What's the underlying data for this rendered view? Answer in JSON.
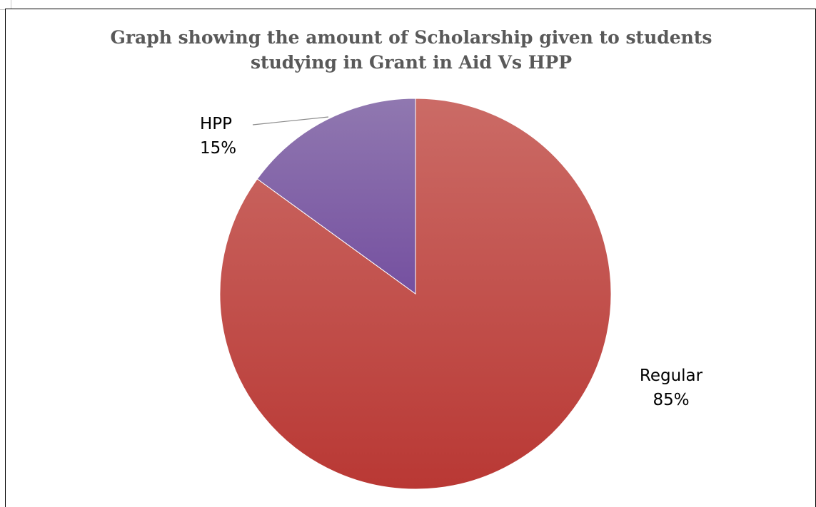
{
  "chart_data": {
    "type": "pie",
    "title": "Graph showing the amount of Scholarship given to students studying in  Grant in Aid   Vs    HPP",
    "title_lines": [
      "Graph showing the amount of Scholarship given to students",
      "studying in  Grant in Aid   Vs    HPP"
    ],
    "slices": [
      {
        "category": "Regular",
        "value": 85,
        "value_label": "85%",
        "color": "#c0504d"
      },
      {
        "category": "HPP",
        "value": 15,
        "value_label": "15%",
        "color": "#8064a2"
      }
    ],
    "legend": "none",
    "start_angle": "12 o'clock",
    "direction": "clockwise"
  }
}
